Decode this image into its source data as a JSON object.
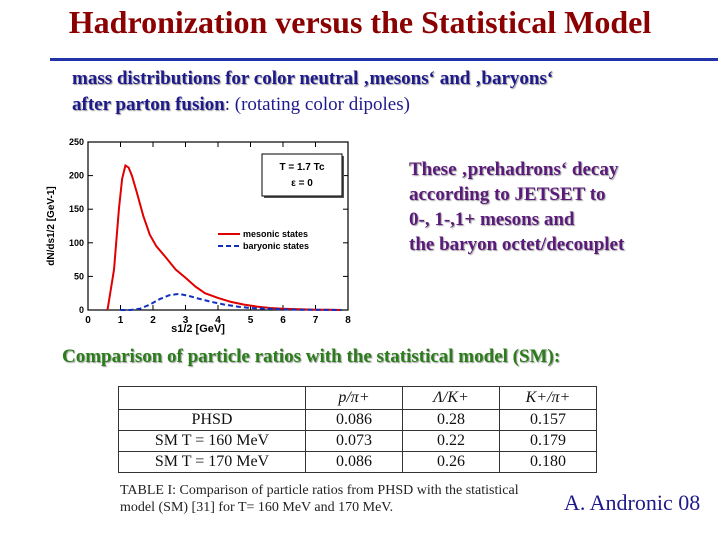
{
  "slide": {
    "title": "Hadronization versus the Statistical Model",
    "subtitle_line1": "mass distributions for color neutral ‚mesons‘ and ‚baryons‘",
    "subtitle_line2_bold": "after parton fusion",
    "subtitle_line2_rest": ": (rotating color dipoles)",
    "side_text": [
      "These ‚prehadrons‘ decay",
      "according to JETSET to",
      "0-, 1-,1+ mesons and",
      "the baryon octet/decouplet"
    ],
    "comparison_heading": "Comparison of particle ratios with the statistical model (SM):",
    "credit": "A. Andronic 08"
  },
  "table": {
    "headers": [
      "",
      "p/π+",
      "Λ/K+",
      "K+/π+"
    ],
    "rows": [
      {
        "label": "PHSD",
        "values": [
          "0.086",
          "0.28",
          "0.157"
        ]
      },
      {
        "label": "SM T = 160 MeV",
        "values": [
          "0.073",
          "0.22",
          "0.179"
        ]
      },
      {
        "label": "SM T = 170 MeV",
        "values": [
          "0.086",
          "0.26",
          "0.180"
        ]
      }
    ],
    "caption": "TABLE I: Comparison of particle ratios from PHSD with the statistical model (SM) [31] for T= 160 MeV and 170 MeV."
  },
  "chart_data": {
    "type": "line",
    "xlabel": "s1/2 [GeV]",
    "ylabel": "dN/ds1/2 [GeV-1]",
    "xlim": [
      0,
      8
    ],
    "ylim": [
      0,
      250
    ],
    "xticks": [
      "0",
      "1",
      "2",
      "3",
      "4",
      "5",
      "6",
      "7",
      "8"
    ],
    "yticks": [
      "0",
      "50",
      "100",
      "150",
      "200",
      "250"
    ],
    "annotation": [
      "T = 1.7 Tc",
      "ε = 0"
    ],
    "series": [
      {
        "name": "mesonic states",
        "color": "#e00000",
        "dash": "solid",
        "x": [
          0.6,
          0.8,
          0.95,
          1.05,
          1.15,
          1.25,
          1.35,
          1.5,
          1.7,
          1.9,
          2.1,
          2.4,
          2.7,
          3.0,
          3.3,
          3.6,
          4.0,
          4.4,
          4.8,
          5.2,
          5.6,
          6.0,
          6.5,
          7.0,
          7.4,
          7.8
        ],
        "y": [
          0,
          60,
          150,
          195,
          215,
          212,
          200,
          175,
          140,
          112,
          95,
          78,
          60,
          48,
          35,
          25,
          18,
          12,
          8,
          5,
          3,
          2,
          1,
          0.5,
          0.3,
          0
        ]
      },
      {
        "name": "baryonic states",
        "color": "#1030c0",
        "dash": "dashed",
        "x": [
          1.0,
          1.3,
          1.6,
          1.9,
          2.2,
          2.5,
          2.8,
          3.1,
          3.4,
          3.8,
          4.2,
          4.6,
          5.0,
          5.5,
          6.0,
          6.5,
          7.0,
          7.5,
          7.8
        ],
        "y": [
          0,
          0,
          2,
          8,
          16,
          22,
          24,
          21,
          17,
          12,
          8,
          5,
          3,
          2,
          1,
          0.5,
          0.3,
          0.2,
          0
        ]
      }
    ]
  }
}
